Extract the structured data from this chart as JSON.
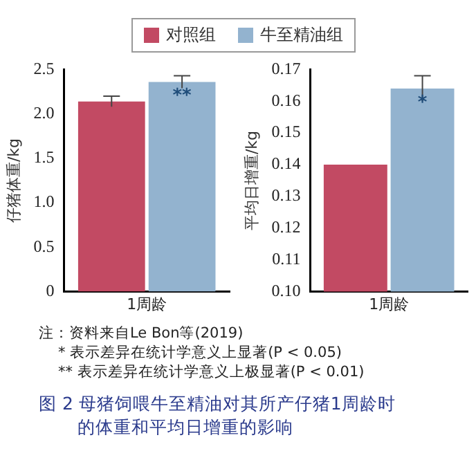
{
  "chart_data": [
    {
      "type": "bar",
      "categories": [
        "1周龄"
      ],
      "ylabel": "仔猪体重/kg",
      "ylim": [
        0,
        2.5
      ],
      "yticks": [
        0,
        0.5,
        {
          "value": 1,
          "label": "1.0"
        },
        1.5,
        {
          "value": 2,
          "label": "2.0"
        },
        2.5
      ],
      "grid": false,
      "legend": "top",
      "series": [
        {
          "name": "对照组",
          "color": "#c24a63",
          "values": [
            2.14
          ],
          "errors": [
            0.06
          ]
        },
        {
          "name": "牛至精油组",
          "color": "#93b3cf",
          "values": [
            2.36
          ],
          "errors": [
            0.07
          ],
          "value_labels": [
            "**"
          ]
        }
      ],
      "annotations": [
        "注：资料来自Le Bon等(2019)",
        "* 表示差异在统计学意义上显著(P < 0.05)",
        "** 表示差异在统计学意义上极显著(P < 0.01)",
        "图 2  母猪饲喂牛至精油对其所产仔猪1周龄时的体重和平均日增重的影响"
      ]
    },
    {
      "type": "bar",
      "categories": [
        "1周龄"
      ],
      "ylabel": "平均日增重/kg",
      "ylim": [
        0.1,
        0.17
      ],
      "yticks": [
        {
          "value": 0.1,
          "label": "0.10"
        },
        0.11,
        0.12,
        0.13,
        0.14,
        0.15,
        0.16,
        0.17
      ],
      "grid": false,
      "series": [
        {
          "color": "#c24a63",
          "values": [
            0.14
          ]
        },
        {
          "color": "#93b3cf",
          "values": [
            0.164
          ],
          "errors": [
            0.004
          ],
          "value_labels": [
            "*"
          ]
        }
      ]
    }
  ]
}
